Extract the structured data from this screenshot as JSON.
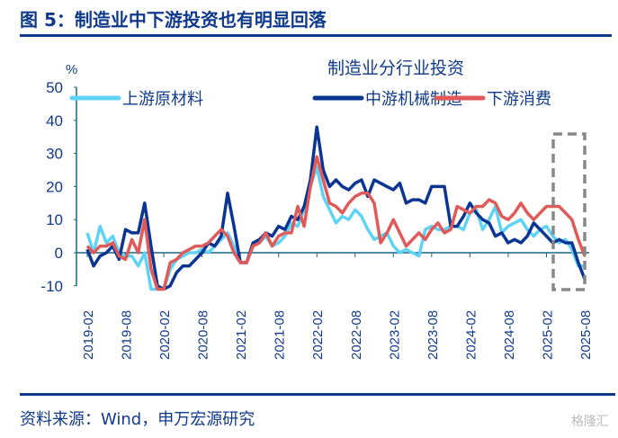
{
  "figure_title": "图 5：制造业中下游投资也有明显回落",
  "source": "资料来源：Wind，申万宏源研究",
  "watermark": "格隆汇",
  "colors": {
    "upstream": "#5fd3f5",
    "midstream": "#0a3592",
    "downstream": "#e05a5a",
    "axis": "#1a6680",
    "text": "#0f3a8c",
    "box": "#888888"
  },
  "chart_data": {
    "type": "line",
    "title": "制造业分行业投资",
    "ylabel": "%",
    "ylim": [
      -10,
      50
    ],
    "yticks": [
      -10,
      0,
      10,
      20,
      30,
      40,
      50
    ],
    "start_month": "2019-02",
    "xtick_labels": [
      "2019-02",
      "2019-08",
      "2020-02",
      "2020-08",
      "2021-02",
      "2021-08",
      "2022-02",
      "2022-08",
      "2023-02",
      "2023-08",
      "2024-02",
      "2024-08",
      "2025-02",
      "2025-08"
    ],
    "legend_placement": "top",
    "highlight": "dashed box around 2025-03 to 2025-08",
    "series": [
      {
        "name": "上游原材料",
        "color": "#5fd3f5",
        "values": [
          6,
          0,
          8,
          3,
          5,
          0,
          -1,
          -1,
          -4,
          0,
          -12,
          -14,
          -13,
          -5,
          -2,
          -1,
          0,
          0,
          1,
          0,
          2,
          4,
          6,
          2,
          -3,
          -3,
          2,
          3,
          5,
          2,
          3,
          5,
          9,
          8,
          13,
          20,
          26,
          17,
          13,
          9,
          11,
          10,
          13,
          11,
          7,
          4,
          5,
          6,
          2,
          0,
          1,
          0,
          -1,
          7,
          8,
          7,
          7,
          8,
          8,
          7,
          12,
          13,
          7,
          10,
          14,
          6,
          8,
          9,
          10,
          7,
          5,
          7,
          8,
          5,
          3,
          4,
          1,
          -4,
          -4
        ]
      },
      {
        "name": "中游机械制造",
        "color": "#0a3592",
        "values": [
          1,
          -4,
          -1,
          0,
          2,
          -2,
          7,
          6,
          6,
          15,
          2,
          -10,
          -13,
          -10,
          -6,
          -4,
          -4,
          -2,
          0,
          3,
          2,
          5,
          18,
          8,
          -3,
          -3,
          3,
          4,
          6,
          5,
          8,
          7,
          11,
          10,
          14,
          22,
          38,
          25,
          20,
          22,
          20,
          19,
          21,
          22,
          17,
          22,
          21,
          20,
          19,
          21,
          15,
          16,
          16,
          15,
          20,
          20,
          20,
          8,
          8,
          11,
          15,
          12,
          10,
          9,
          5,
          6,
          3,
          4,
          3,
          5,
          9,
          7,
          5,
          3,
          4,
          3,
          3,
          -3,
          -8
        ]
      },
      {
        "name": "下游消费",
        "color": "#e05a5a",
        "values": [
          2,
          0,
          2,
          2,
          3,
          -1,
          -2,
          4,
          0,
          10,
          -5,
          -14,
          -13,
          -3,
          -2,
          0,
          1,
          2,
          2,
          3,
          5,
          7,
          5,
          0,
          -3,
          -3,
          2,
          3,
          6,
          2,
          5,
          6,
          6,
          14,
          8,
          20,
          29,
          22,
          15,
          14,
          12,
          15,
          17,
          18,
          18,
          15,
          3,
          6,
          10,
          6,
          2,
          4,
          6,
          4,
          7,
          9,
          6,
          7,
          14,
          13,
          12,
          14,
          14,
          16,
          15,
          11,
          10,
          12,
          15,
          12,
          10,
          12,
          14,
          14,
          14,
          12,
          10,
          4,
          -1
        ]
      }
    ]
  }
}
